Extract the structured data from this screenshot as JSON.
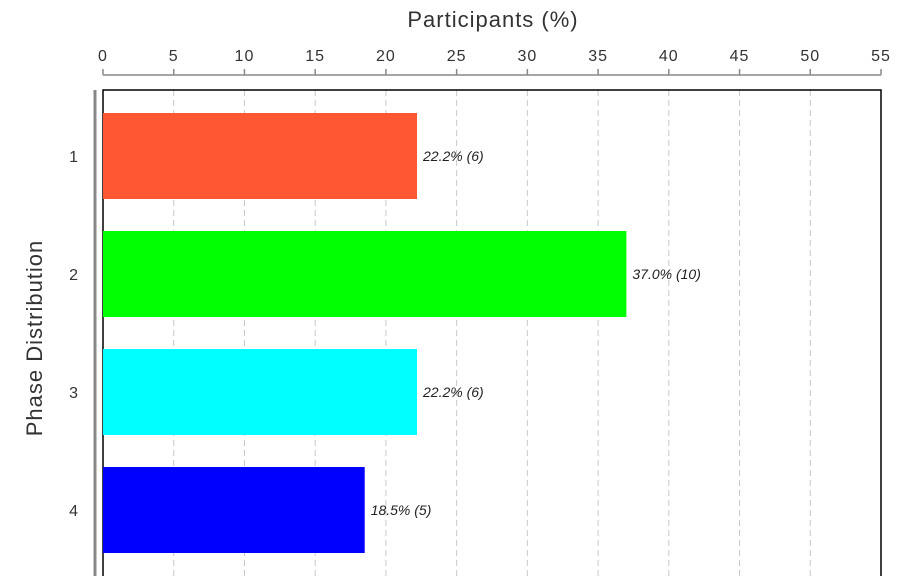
{
  "chart_data": {
    "type": "bar",
    "orientation": "horizontal",
    "xlabel": "Participants (%)",
    "ylabel": "Phase Distribution",
    "xlim": [
      0,
      55
    ],
    "x_ticks": [
      "0",
      "5",
      "10",
      "15",
      "20",
      "25",
      "30",
      "35",
      "40",
      "45",
      "50",
      "55"
    ],
    "x_axis_position": "top",
    "grid": true,
    "categories": [
      "1",
      "2",
      "3",
      "4"
    ],
    "values": [
      22.2,
      37.0,
      22.2,
      18.5
    ],
    "counts": [
      6,
      10,
      6,
      5
    ],
    "data_labels": [
      "22.2% (6)",
      "37.0% (10)",
      "22.2% (6)",
      "18.5% (5)"
    ],
    "colors": [
      "#ff5733",
      "#00ff00",
      "#00ffff",
      "#0000ff"
    ]
  }
}
